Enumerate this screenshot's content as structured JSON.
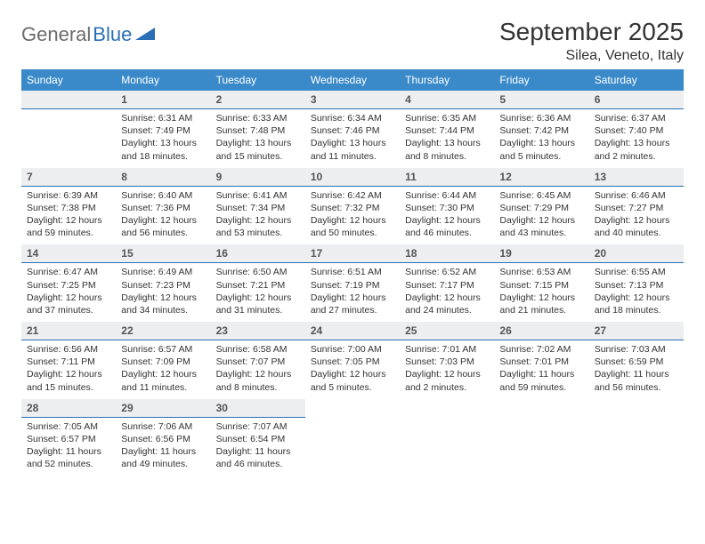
{
  "logo": {
    "text_gray": "General",
    "text_blue": "Blue"
  },
  "title": "September 2025",
  "location": "Silea, Veneto, Italy",
  "colors": {
    "header_bg": "#3a8ac9",
    "header_text": "#ffffff",
    "daynum_bg": "#eceeef",
    "daynum_border": "#2a6fb5",
    "body_text": "#333333",
    "logo_gray": "#6b6b6b",
    "logo_blue": "#2a6fb5"
  },
  "typography": {
    "title_fontsize": 28,
    "weekday_fontsize": 12,
    "body_fontsize": 10.5
  },
  "weekdays": [
    "Sunday",
    "Monday",
    "Tuesday",
    "Wednesday",
    "Thursday",
    "Friday",
    "Saturday"
  ],
  "weeks": [
    [
      {
        "day": "",
        "lines": []
      },
      {
        "day": "1",
        "lines": [
          "Sunrise: 6:31 AM",
          "Sunset: 7:49 PM",
          "Daylight: 13 hours and 18 minutes."
        ]
      },
      {
        "day": "2",
        "lines": [
          "Sunrise: 6:33 AM",
          "Sunset: 7:48 PM",
          "Daylight: 13 hours and 15 minutes."
        ]
      },
      {
        "day": "3",
        "lines": [
          "Sunrise: 6:34 AM",
          "Sunset: 7:46 PM",
          "Daylight: 13 hours and 11 minutes."
        ]
      },
      {
        "day": "4",
        "lines": [
          "Sunrise: 6:35 AM",
          "Sunset: 7:44 PM",
          "Daylight: 13 hours and 8 minutes."
        ]
      },
      {
        "day": "5",
        "lines": [
          "Sunrise: 6:36 AM",
          "Sunset: 7:42 PM",
          "Daylight: 13 hours and 5 minutes."
        ]
      },
      {
        "day": "6",
        "lines": [
          "Sunrise: 6:37 AM",
          "Sunset: 7:40 PM",
          "Daylight: 13 hours and 2 minutes."
        ]
      }
    ],
    [
      {
        "day": "7",
        "lines": [
          "Sunrise: 6:39 AM",
          "Sunset: 7:38 PM",
          "Daylight: 12 hours and 59 minutes."
        ]
      },
      {
        "day": "8",
        "lines": [
          "Sunrise: 6:40 AM",
          "Sunset: 7:36 PM",
          "Daylight: 12 hours and 56 minutes."
        ]
      },
      {
        "day": "9",
        "lines": [
          "Sunrise: 6:41 AM",
          "Sunset: 7:34 PM",
          "Daylight: 12 hours and 53 minutes."
        ]
      },
      {
        "day": "10",
        "lines": [
          "Sunrise: 6:42 AM",
          "Sunset: 7:32 PM",
          "Daylight: 12 hours and 50 minutes."
        ]
      },
      {
        "day": "11",
        "lines": [
          "Sunrise: 6:44 AM",
          "Sunset: 7:30 PM",
          "Daylight: 12 hours and 46 minutes."
        ]
      },
      {
        "day": "12",
        "lines": [
          "Sunrise: 6:45 AM",
          "Sunset: 7:29 PM",
          "Daylight: 12 hours and 43 minutes."
        ]
      },
      {
        "day": "13",
        "lines": [
          "Sunrise: 6:46 AM",
          "Sunset: 7:27 PM",
          "Daylight: 12 hours and 40 minutes."
        ]
      }
    ],
    [
      {
        "day": "14",
        "lines": [
          "Sunrise: 6:47 AM",
          "Sunset: 7:25 PM",
          "Daylight: 12 hours and 37 minutes."
        ]
      },
      {
        "day": "15",
        "lines": [
          "Sunrise: 6:49 AM",
          "Sunset: 7:23 PM",
          "Daylight: 12 hours and 34 minutes."
        ]
      },
      {
        "day": "16",
        "lines": [
          "Sunrise: 6:50 AM",
          "Sunset: 7:21 PM",
          "Daylight: 12 hours and 31 minutes."
        ]
      },
      {
        "day": "17",
        "lines": [
          "Sunrise: 6:51 AM",
          "Sunset: 7:19 PM",
          "Daylight: 12 hours and 27 minutes."
        ]
      },
      {
        "day": "18",
        "lines": [
          "Sunrise: 6:52 AM",
          "Sunset: 7:17 PM",
          "Daylight: 12 hours and 24 minutes."
        ]
      },
      {
        "day": "19",
        "lines": [
          "Sunrise: 6:53 AM",
          "Sunset: 7:15 PM",
          "Daylight: 12 hours and 21 minutes."
        ]
      },
      {
        "day": "20",
        "lines": [
          "Sunrise: 6:55 AM",
          "Sunset: 7:13 PM",
          "Daylight: 12 hours and 18 minutes."
        ]
      }
    ],
    [
      {
        "day": "21",
        "lines": [
          "Sunrise: 6:56 AM",
          "Sunset: 7:11 PM",
          "Daylight: 12 hours and 15 minutes."
        ]
      },
      {
        "day": "22",
        "lines": [
          "Sunrise: 6:57 AM",
          "Sunset: 7:09 PM",
          "Daylight: 12 hours and 11 minutes."
        ]
      },
      {
        "day": "23",
        "lines": [
          "Sunrise: 6:58 AM",
          "Sunset: 7:07 PM",
          "Daylight: 12 hours and 8 minutes."
        ]
      },
      {
        "day": "24",
        "lines": [
          "Sunrise: 7:00 AM",
          "Sunset: 7:05 PM",
          "Daylight: 12 hours and 5 minutes."
        ]
      },
      {
        "day": "25",
        "lines": [
          "Sunrise: 7:01 AM",
          "Sunset: 7:03 PM",
          "Daylight: 12 hours and 2 minutes."
        ]
      },
      {
        "day": "26",
        "lines": [
          "Sunrise: 7:02 AM",
          "Sunset: 7:01 PM",
          "Daylight: 11 hours and 59 minutes."
        ]
      },
      {
        "day": "27",
        "lines": [
          "Sunrise: 7:03 AM",
          "Sunset: 6:59 PM",
          "Daylight: 11 hours and 56 minutes."
        ]
      }
    ],
    [
      {
        "day": "28",
        "lines": [
          "Sunrise: 7:05 AM",
          "Sunset: 6:57 PM",
          "Daylight: 11 hours and 52 minutes."
        ]
      },
      {
        "day": "29",
        "lines": [
          "Sunrise: 7:06 AM",
          "Sunset: 6:56 PM",
          "Daylight: 11 hours and 49 minutes."
        ]
      },
      {
        "day": "30",
        "lines": [
          "Sunrise: 7:07 AM",
          "Sunset: 6:54 PM",
          "Daylight: 11 hours and 46 minutes."
        ]
      },
      {
        "day": "",
        "lines": []
      },
      {
        "day": "",
        "lines": []
      },
      {
        "day": "",
        "lines": []
      },
      {
        "day": "",
        "lines": []
      }
    ]
  ]
}
